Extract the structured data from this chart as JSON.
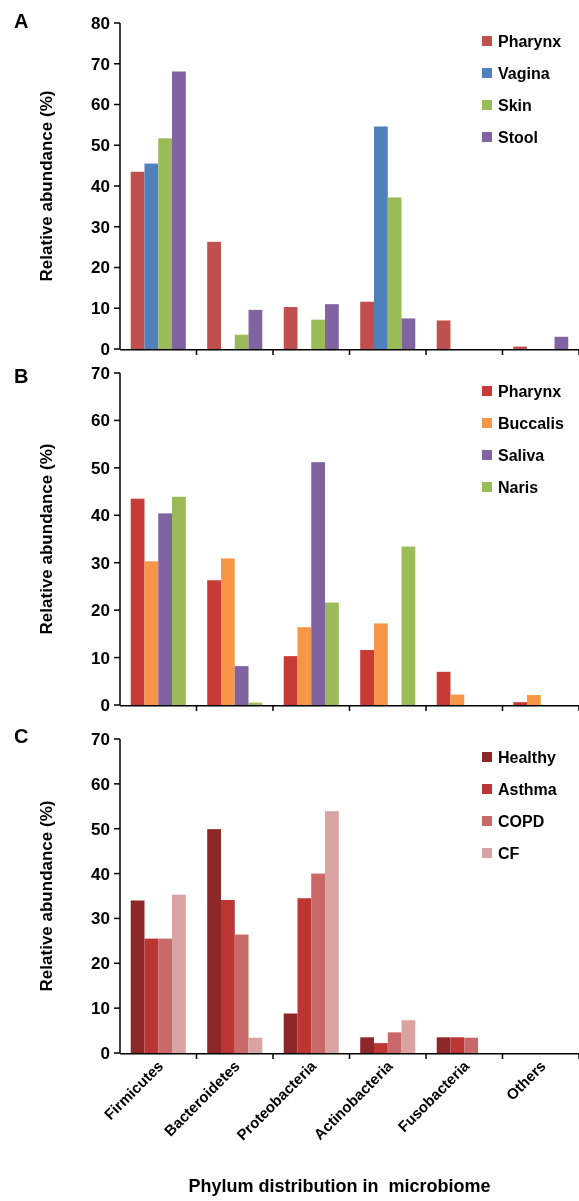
{
  "chart_data": [
    {
      "type": "bar",
      "title": "A",
      "ylabel": "Relative abundance (%)",
      "categories": [
        null,
        null,
        null,
        null,
        null,
        null
      ],
      "tick_labels": "y",
      "ylim": [
        0,
        80
      ],
      "yticks": [
        0,
        10,
        20,
        30,
        40,
        50,
        60,
        70,
        80
      ],
      "legend": "top right",
      "series": [
        {
          "name": "Pharynx",
          "color": "#c0504d",
          "values": [
            43.5,
            26.3,
            10.3,
            11.6,
            7.0,
            0.6
          ]
        },
        {
          "name": "Vagina",
          "color": "#4f81bd",
          "values": [
            45.5,
            0,
            0,
            54.6,
            0,
            0
          ]
        },
        {
          "name": "Skin",
          "color": "#9bbb59",
          "values": [
            51.7,
            3.5,
            7.2,
            37.2,
            0,
            0
          ]
        },
        {
          "name": "Stool",
          "color": "#8064a2",
          "values": [
            68.1,
            9.6,
            11.0,
            7.5,
            0,
            3.0
          ]
        }
      ]
    },
    {
      "type": "bar",
      "title": "B",
      "ylabel": "Relative abundance (%)",
      "categories": [
        null,
        null,
        null,
        null,
        null,
        null
      ],
      "tick_labels": "y",
      "ylim": [
        0,
        70
      ],
      "yticks": [
        0,
        10,
        20,
        30,
        40,
        50,
        60,
        70
      ],
      "legend": "top right",
      "series": [
        {
          "name": "Pharynx",
          "color": "#c83a36",
          "values": [
            43.5,
            26.3,
            10.3,
            11.6,
            7.0,
            0.6
          ]
        },
        {
          "name": "Buccalis",
          "color": "#f79646",
          "values": [
            30.3,
            30.9,
            16.4,
            17.2,
            2.2,
            2.1
          ]
        },
        {
          "name": "Saliva",
          "color": "#8064a2",
          "values": [
            40.4,
            8.2,
            51.2,
            0,
            0,
            0
          ]
        },
        {
          "name": "Naris",
          "color": "#9bbb59",
          "values": [
            43.9,
            0.5,
            21.6,
            33.4,
            0,
            0
          ]
        }
      ]
    },
    {
      "type": "bar",
      "title": "C",
      "ylabel": "Relative abundance (%)",
      "xlabel": "Phylum distribution in  microbiome",
      "categories": [
        "Firmicutes",
        "Bacteroidetes",
        "Proteobacteria",
        "Actinobacteria",
        "Fusobacteria",
        "Others"
      ],
      "ylim": [
        0,
        70
      ],
      "yticks": [
        0,
        10,
        20,
        30,
        40,
        50,
        60,
        70
      ],
      "legend": "top right",
      "series": [
        {
          "name": "Healthy",
          "color": "#8e2727",
          "values": [
            34.0,
            49.9,
            8.8,
            3.5,
            3.5,
            0
          ]
        },
        {
          "name": "Asthma",
          "color": "#bb3532",
          "values": [
            25.5,
            34.1,
            34.5,
            2.2,
            3.5,
            0
          ]
        },
        {
          "name": "COPD",
          "color": "#c96868",
          "values": [
            25.5,
            26.4,
            40.0,
            4.6,
            3.4,
            0
          ]
        },
        {
          "name": "CF",
          "color": "#d9a3a3",
          "values": [
            35.3,
            3.4,
            53.9,
            7.3,
            0,
            0
          ]
        }
      ]
    }
  ]
}
